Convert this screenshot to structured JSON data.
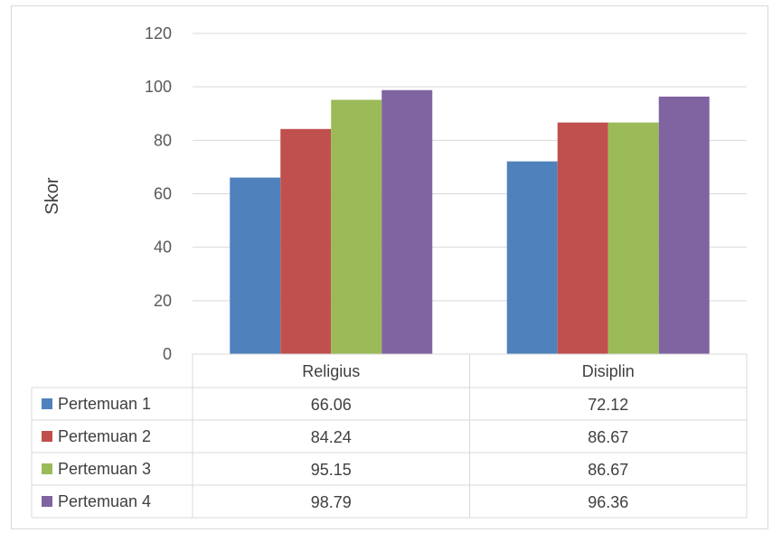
{
  "chart_data": {
    "type": "bar",
    "title": "",
    "xlabel": "",
    "ylabel": "Skor",
    "ylim": [
      0,
      120
    ],
    "yticks": [
      0,
      20,
      40,
      60,
      80,
      100,
      120
    ],
    "categories": [
      "Religius",
      "Disiplin"
    ],
    "grid": true,
    "legend": "data-table",
    "series": [
      {
        "name": "Pertemuan 1",
        "color": "#4f81bd",
        "values": [
          66.06,
          72.12
        ],
        "labels": [
          "66.06",
          "72.12"
        ]
      },
      {
        "name": "Pertemuan 2",
        "color": "#c0504d",
        "values": [
          84.24,
          86.67
        ],
        "labels": [
          "84.24",
          "86.67"
        ]
      },
      {
        "name": "Pertemuan 3",
        "color": "#9bbb59",
        "values": [
          95.15,
          86.67
        ],
        "labels": [
          "95.15",
          "86.67"
        ]
      },
      {
        "name": "Pertemuan 4",
        "color": "#8064a2",
        "values": [
          98.79,
          96.36
        ],
        "labels": [
          "98.79",
          "96.36"
        ]
      }
    ]
  }
}
